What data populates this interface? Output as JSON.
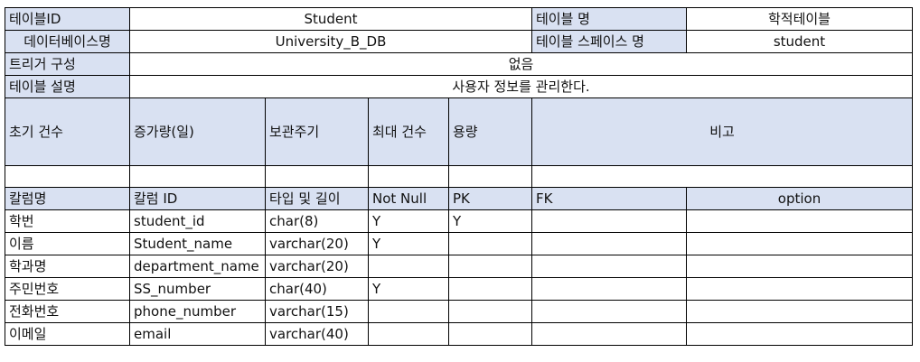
{
  "meta": {
    "table_id_label": "테이블ID",
    "table_id": "Student",
    "table_name_label": "테이블 명",
    "table_name": "학적테이블",
    "db_name_label": "데이터베이스명",
    "db_name": "University_B_DB",
    "tablespace_label": "테이블 스페이스 명",
    "tablespace": "student",
    "trigger_label": "트리거 구성",
    "trigger": "없음",
    "desc_label": "테이블 설명",
    "desc": "사용자 정보를 관리한다."
  },
  "volume": {
    "headers": [
      "초기 건수",
      "증가량(일)",
      "보관주기",
      "최대 건수",
      "용량",
      "비고"
    ],
    "values": [
      "",
      "",
      "",
      "",
      "",
      ""
    ]
  },
  "columns": {
    "headers": [
      "칼럼명",
      "칼럼 ID",
      "타입 및 길이",
      "Not Null",
      "PK",
      "FK",
      "option"
    ],
    "rows": [
      [
        "학번",
        "student_id",
        "char(8)",
        "Y",
        "Y",
        "",
        ""
      ],
      [
        "이름",
        "Student_name",
        "varchar(20)",
        "Y",
        "",
        "",
        ""
      ],
      [
        "학과명",
        "department_name",
        "varchar(20)",
        "",
        "",
        "",
        ""
      ],
      [
        "주민번호",
        "SS_number",
        "char(40)",
        "Y",
        "",
        "",
        ""
      ],
      [
        "전화번호",
        "phone_number",
        "varchar(15)",
        "",
        "",
        "",
        ""
      ],
      [
        "이메일",
        "email",
        "varchar(40)",
        "",
        "",
        "",
        ""
      ]
    ]
  },
  "colors": {
    "header_fill": "#d9e1f2",
    "border": "#000000"
  }
}
